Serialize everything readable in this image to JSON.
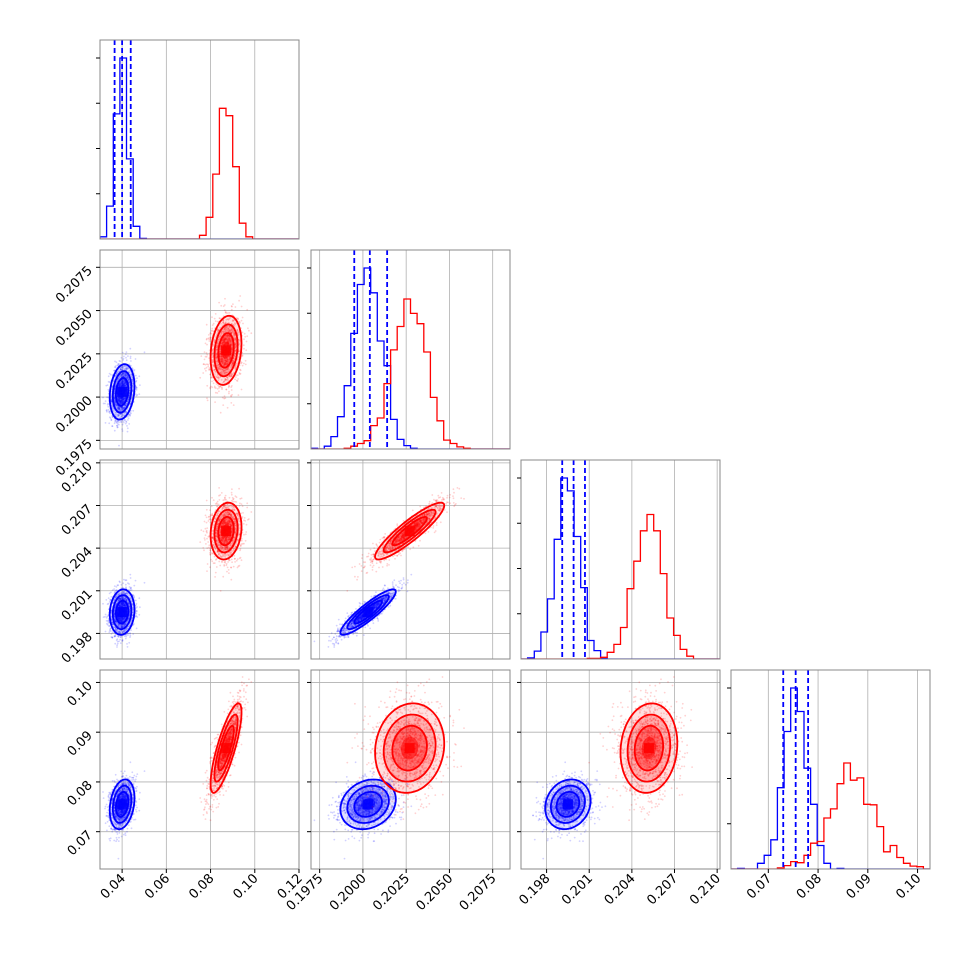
{
  "chart_data": {
    "type": "corner",
    "title": "",
    "parameters": [
      "",
      "",
      "",
      ""
    ],
    "ranges": [
      [
        0.03,
        0.12
      ],
      [
        0.197,
        0.2085
      ],
      [
        0.1962,
        0.2102
      ],
      [
        0.0625,
        0.1025
      ]
    ],
    "ticks": [
      [
        0.04,
        0.06,
        0.08,
        0.1,
        0.12
      ],
      [
        0.1975,
        0.2,
        0.2025,
        0.205,
        0.2075
      ],
      [
        0.198,
        0.201,
        0.204,
        0.207,
        0.21
      ],
      [
        0.07,
        0.08,
        0.09,
        0.1
      ]
    ],
    "tick_labels": [
      [
        "0.04",
        "0.06",
        "0.08",
        "0.10",
        "0.12"
      ],
      [
        "0.1975",
        "0.2000",
        "0.2025",
        "0.2050",
        "0.2075"
      ],
      [
        "0.198",
        "0.201",
        "0.204",
        "0.207",
        "0.210"
      ],
      [
        "0.07",
        "0.08",
        "0.09",
        "0.10"
      ]
    ],
    "grid": true,
    "legend": "none",
    "series": [
      {
        "color": "#0000ff",
        "mean": [
          0.04,
          0.2003,
          0.1995,
          0.0755
        ],
        "std": [
          0.0028,
          0.0008,
          0.0008,
          0.0025
        ],
        "correlations": [
          [
            0,
            1,
            0.2
          ],
          [
            0,
            2,
            0.1
          ],
          [
            0,
            3,
            0.25
          ],
          [
            1,
            2,
            0.9
          ],
          [
            1,
            3,
            0.2
          ],
          [
            2,
            3,
            0.15
          ]
        ],
        "quantiles": [
          [
            0.0366,
            0.04,
            0.0439
          ],
          [
            0.1995,
            0.2004,
            0.2014
          ],
          [
            0.1991,
            0.1999,
            0.2007
          ],
          [
            0.073,
            0.0755,
            0.078
          ]
        ]
      },
      {
        "color": "#ff0000",
        "mean": [
          0.087,
          0.2027,
          0.2052,
          0.0868
        ],
        "std": [
          0.0035,
          0.001,
          0.001,
          0.0045
        ],
        "correlations": [
          [
            0,
            1,
            0.2
          ],
          [
            0,
            2,
            0.15
          ],
          [
            0,
            3,
            0.8
          ],
          [
            1,
            2,
            0.9
          ],
          [
            1,
            3,
            0.1
          ],
          [
            2,
            3,
            0.1
          ]
        ]
      }
    ]
  }
}
